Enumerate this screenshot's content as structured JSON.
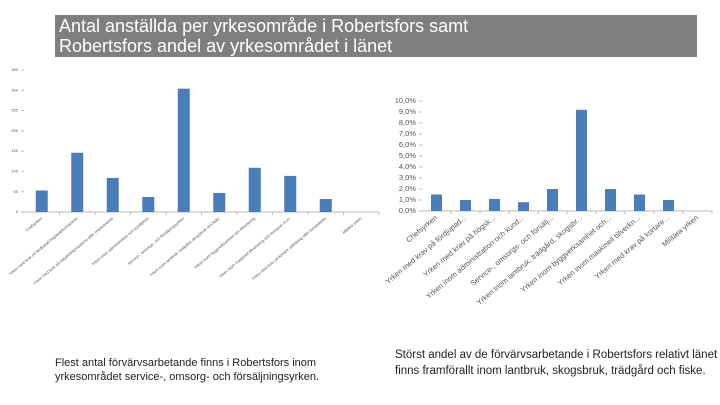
{
  "slide": {
    "title_lines": [
      "Antal anställda per yrkesområde i Robertsfors samt",
      "Robertsfors andel av yrkesområdet i länet"
    ],
    "captions": [
      "Flest antal förvärvsarbetande finns i Robertsfors inom yrkesområdet service-, omsorg- och försäljningsyrken.",
      "Störst andel av de förvärvsarbetande i Robertsfors relativt länet finns framförallt inom lantbruk, skogsbruk, trädgård och fiske."
    ]
  },
  "chart_data": [
    {
      "type": "bar",
      "color": "#4a7ebb",
      "categories": [
        "Chefsyrken",
        "Yrken med krav på fördjupad högskolekompetens",
        "Yrken med krav på högskolekompetens eller motsvarande",
        "Yrken inom administration och kundtjänst",
        "Service-, omsorgs- och försäljningsyrken",
        "Yrken inom lantbruk, trädgård, skogsbruk och fiske",
        "Yrken inom byggverksamhet och tillverkning",
        "Yrken inom maskinell tillverkning och transport m.m.",
        "Yrken med krav på kortare utbildning eller introduktion",
        "Militära yrken"
      ],
      "values": [
        53,
        146,
        84,
        37,
        304,
        47,
        109,
        89,
        32,
        0
      ],
      "ylim": [
        0,
        350
      ],
      "yticks": [
        0,
        50,
        100,
        150,
        200,
        250,
        300,
        350
      ]
    },
    {
      "type": "bar",
      "color": "#4a7ebb",
      "categories": [
        "Chefsyrken",
        "Yrken med krav på fördjupad...",
        "Yrken med krav på högsk...",
        "Yrken inom administration och kund...",
        "Service-, omsorgs- och försälj...",
        "Yrken inom lantbruk, trädgård, skogsbr...",
        "Yrken inom byggverksamhet och...",
        "Yrken inom maskinell tillverkn...",
        "Yrken med krav på kortare...",
        "Militära yrken"
      ],
      "values": [
        1.5,
        1.0,
        1.1,
        0.8,
        2.0,
        9.2,
        2.0,
        1.5,
        1.0,
        0
      ],
      "ylim": [
        0,
        10
      ],
      "yticks": [
        {
          "value": 0,
          "label": "0,0%"
        },
        {
          "value": 1,
          "label": "1,0%"
        },
        {
          "value": 2,
          "label": "2,0%"
        },
        {
          "value": 3,
          "label": "3,0%"
        },
        {
          "value": 4,
          "label": "4,0%"
        },
        {
          "value": 5,
          "label": "5,0%"
        },
        {
          "value": 6,
          "label": "6,0%"
        },
        {
          "value": 7,
          "label": "7,0%"
        },
        {
          "value": 8,
          "label": "8,0%"
        },
        {
          "value": 9,
          "label": "9,0%"
        },
        {
          "value": 10,
          "label": "10,0%"
        }
      ]
    }
  ]
}
